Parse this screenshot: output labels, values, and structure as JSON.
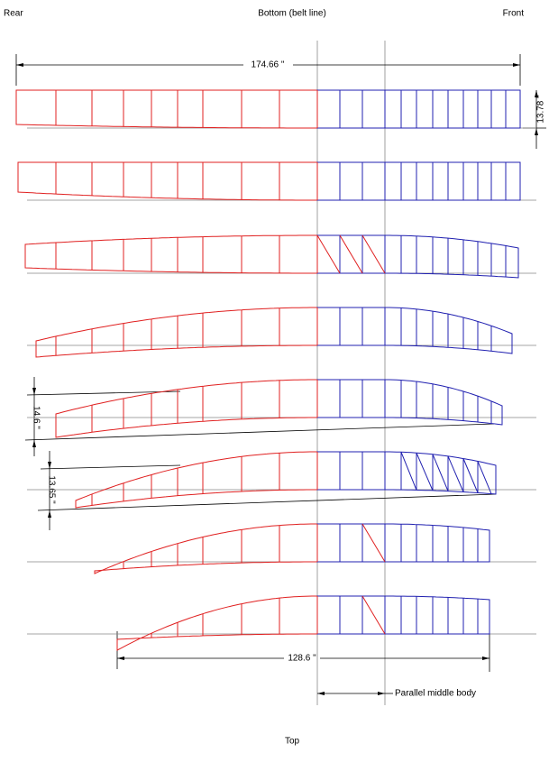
{
  "header": {
    "left": "Rear",
    "center": "Bottom (belt line)",
    "right": "Front"
  },
  "dimensions": {
    "overall_length": "174.66 \"",
    "height": "13.78 \"",
    "rise_1": "14.6 \"",
    "rise_2": "13.65 \"",
    "top_length": "128.6 \"",
    "parallel_middle_body": "Parallel middle body"
  },
  "footer": {
    "center": "Top"
  }
}
